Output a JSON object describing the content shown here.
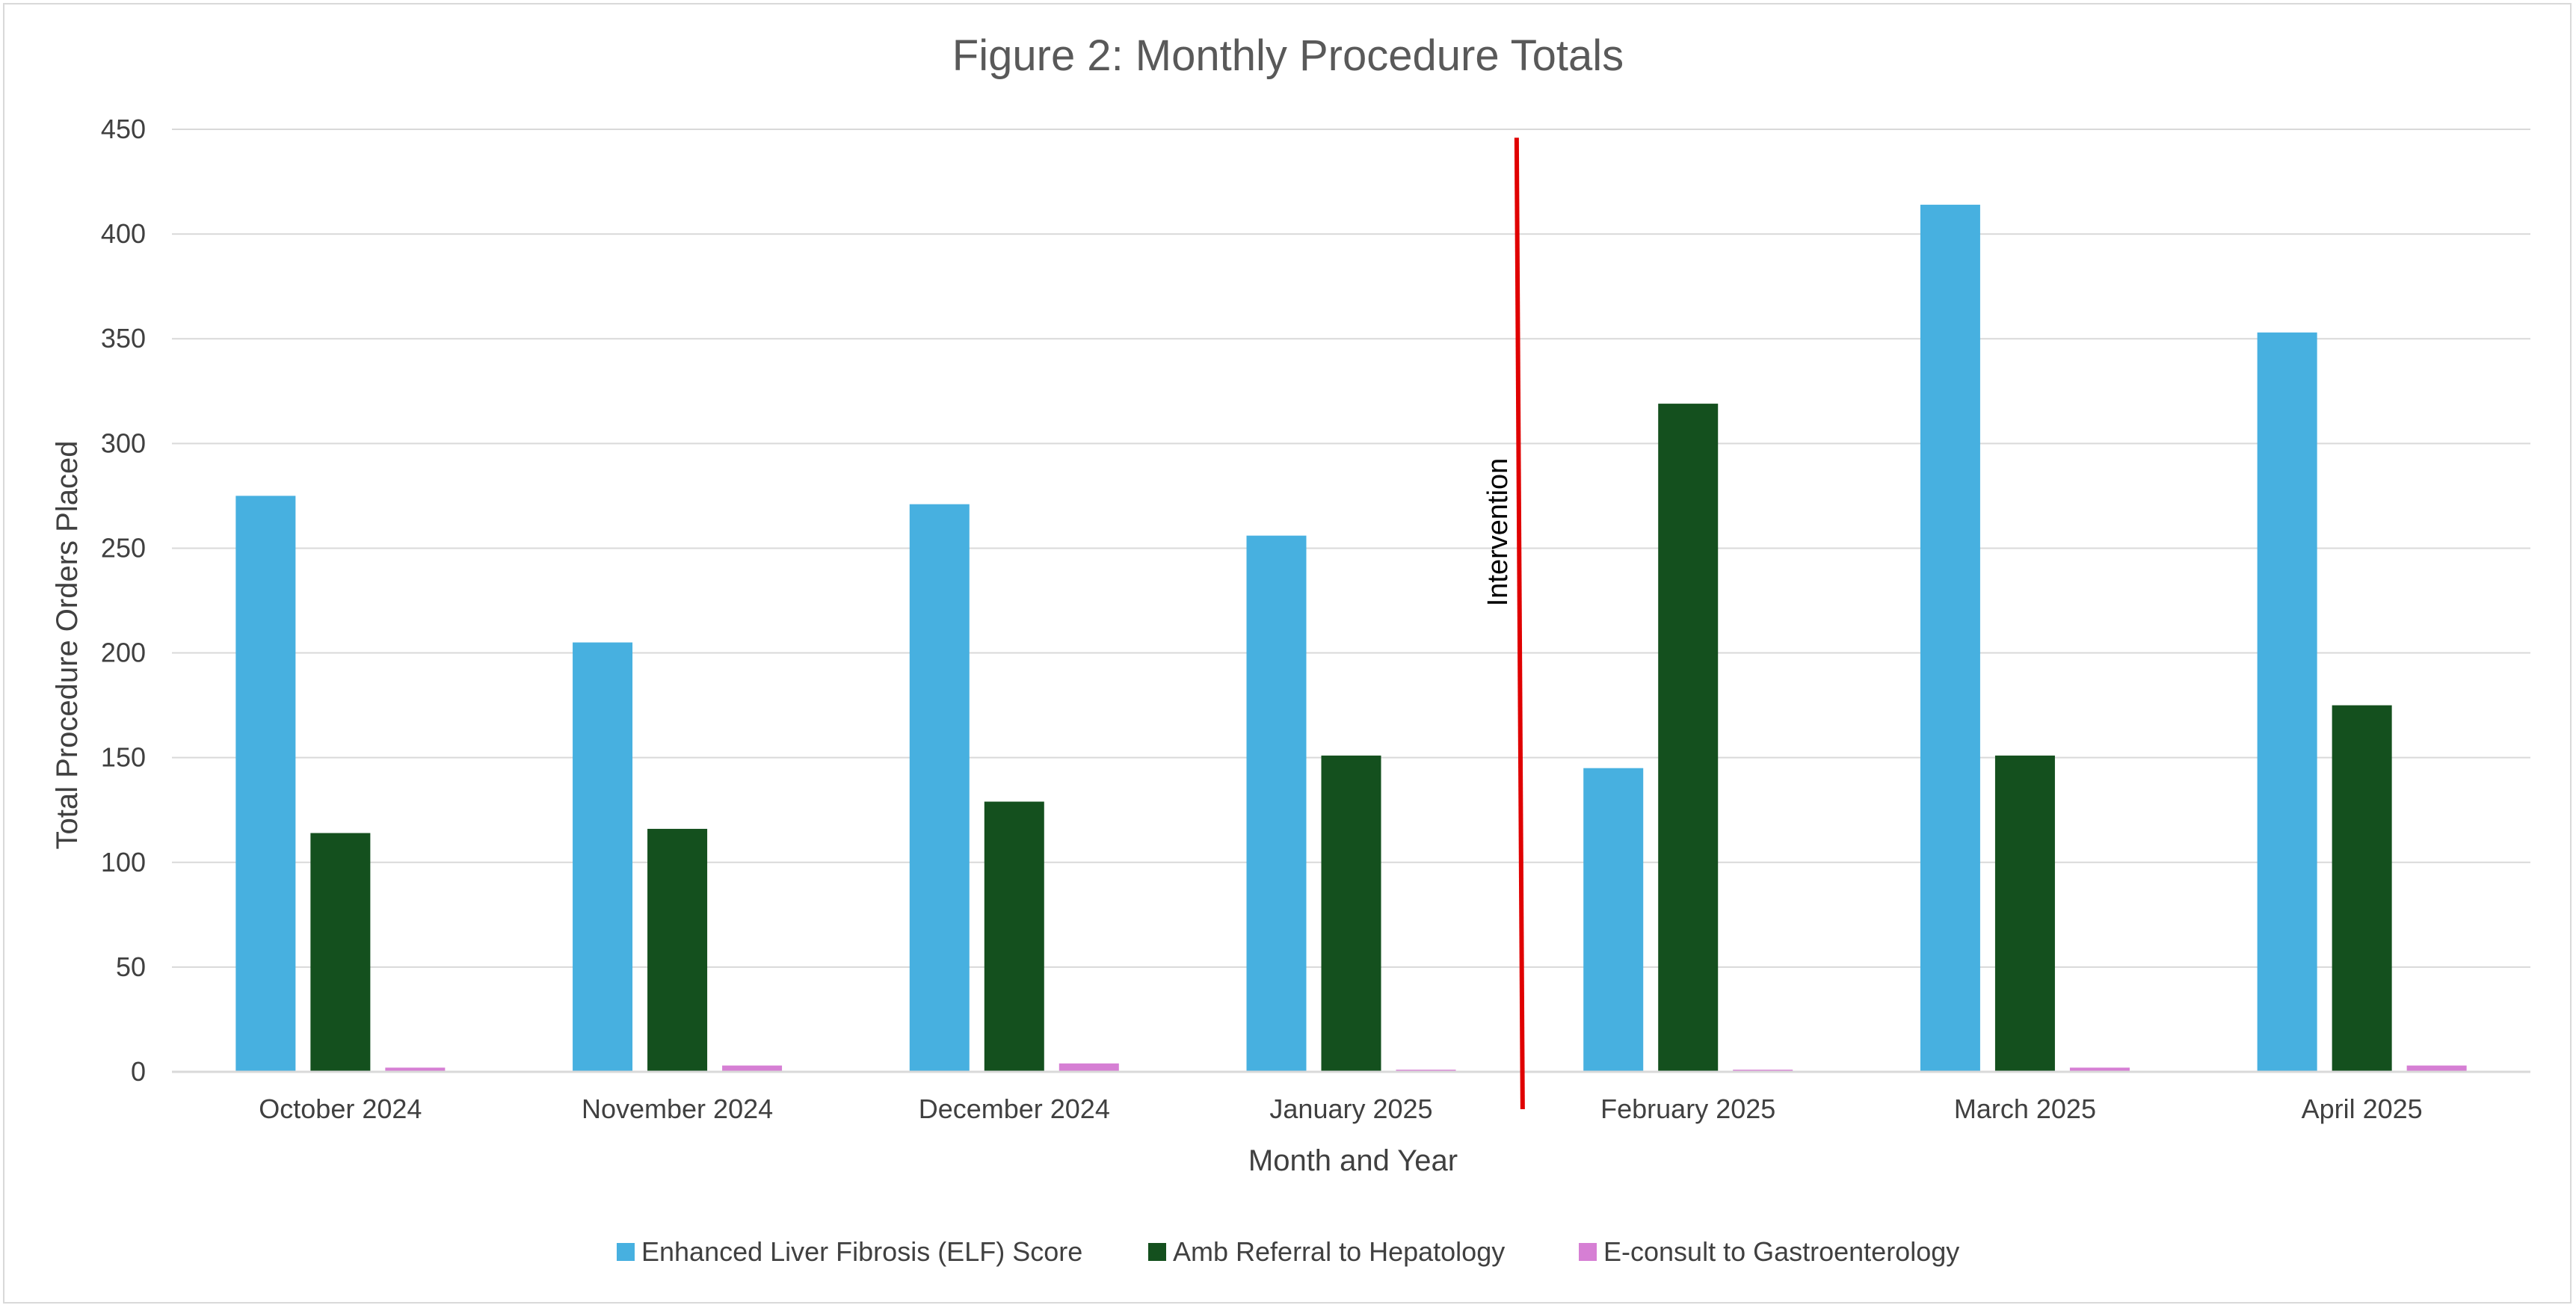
{
  "chart_data": {
    "type": "bar",
    "title": "Figure 2: Monthly Procedure Totals",
    "xlabel": "Month and Year",
    "ylabel": "Total Procedure Orders Placed",
    "ylim": [
      0,
      450
    ],
    "yticks": [
      0,
      50,
      100,
      150,
      200,
      250,
      300,
      350,
      400,
      450
    ],
    "grid": true,
    "legend_position": "bottom",
    "categories": [
      "October 2024",
      "November 2024",
      "December 2024",
      "January 2025",
      "February 2025",
      "March 2025",
      "April 2025"
    ],
    "series": [
      {
        "name": "Enhanced Liver Fibrosis (ELF) Score",
        "color": "#47b0e0",
        "values": [
          275,
          205,
          271,
          256,
          145,
          414,
          353
        ]
      },
      {
        "name": "Amb Referral to Hepatology",
        "color": "#14501e",
        "values": [
          114,
          116,
          129,
          151,
          319,
          151,
          175
        ]
      },
      {
        "name": "E-consult to Gastroenterology",
        "color": "#d67fd4",
        "values": [
          2,
          3,
          4,
          1,
          1,
          2,
          3
        ]
      }
    ],
    "annotations": [
      {
        "text": "Intervention",
        "color": "#e00000",
        "between": [
          "January 2025",
          "February 2025"
        ]
      }
    ]
  }
}
